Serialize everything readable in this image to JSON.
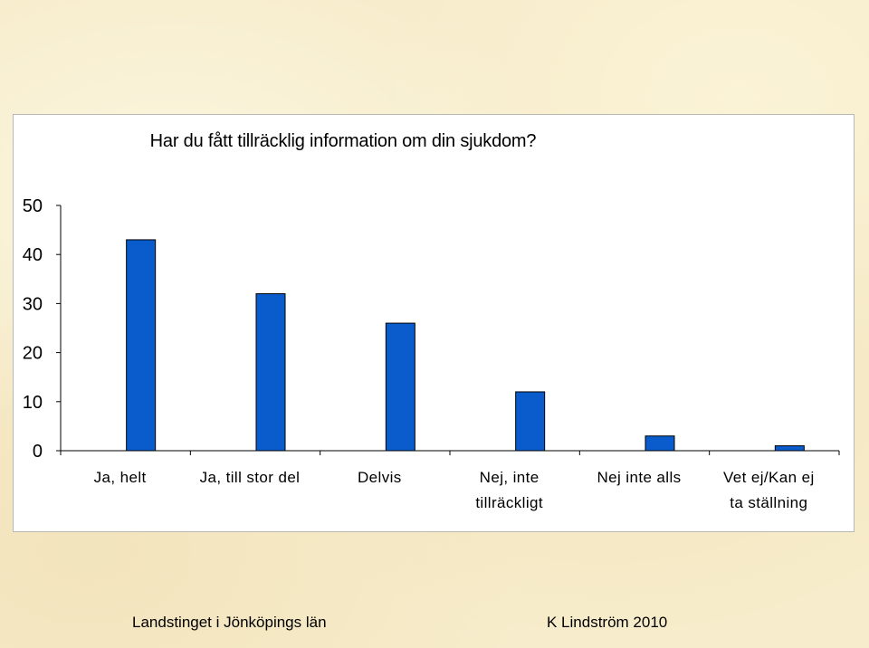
{
  "colors": {
    "bar": "#0a5ccc",
    "bar_outline": "#000000",
    "axis": "#000000"
  },
  "chart_data": {
    "type": "bar",
    "title": "Har du fått tillräcklig information om din sjukdom?",
    "categories": [
      [
        "Ja, helt"
      ],
      [
        "Ja, till stor del"
      ],
      [
        "Delvis"
      ],
      [
        "Nej, inte",
        "tillräckligt"
      ],
      [
        "Nej inte alls"
      ],
      [
        "Vet ej/Kan ej",
        "ta ställning"
      ]
    ],
    "values": [
      43,
      32,
      26,
      12,
      3,
      1
    ],
    "ylim": [
      0,
      50
    ],
    "yticks": [
      0,
      10,
      20,
      30,
      40,
      50
    ],
    "grid": false,
    "legend": "none"
  },
  "footer": {
    "left": "Landstinget i Jönköpings län",
    "right": "K Lindström 2010"
  }
}
